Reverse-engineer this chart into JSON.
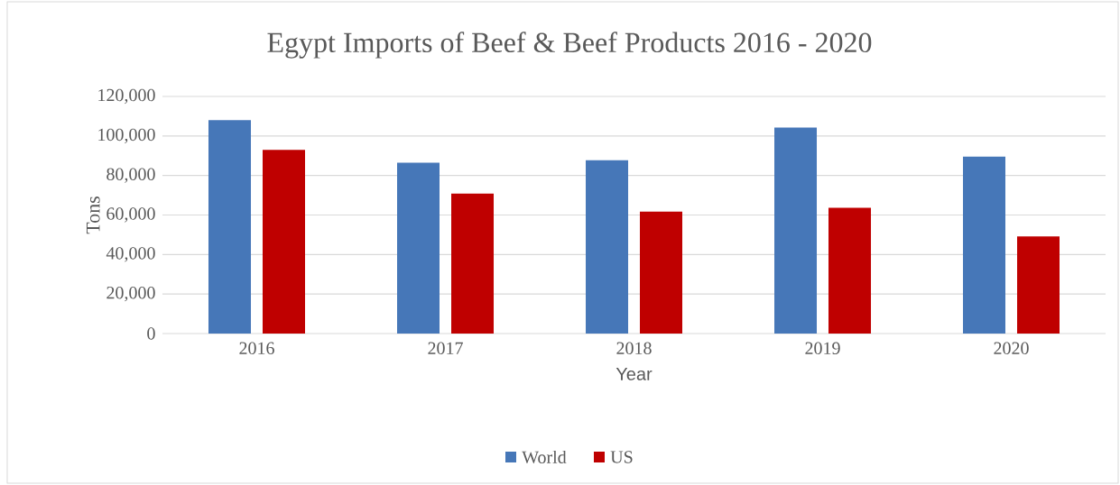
{
  "chart_data": {
    "type": "bar",
    "title": "Egypt Imports of Beef & Beef Products 2016 - 2020",
    "xlabel": "Year",
    "ylabel": "Tons",
    "categories": [
      "2016",
      "2017",
      "2018",
      "2019",
      "2020"
    ],
    "series": [
      {
        "name": "World",
        "color": "#4677b8",
        "values": [
          108000,
          86500,
          87700,
          104300,
          89500
        ]
      },
      {
        "name": "US",
        "color": "#bf0000",
        "values": [
          93000,
          70800,
          61700,
          63600,
          49200
        ]
      }
    ],
    "ylim": [
      0,
      120000
    ],
    "yticks": [
      {
        "value": 0,
        "label": "0"
      },
      {
        "value": 20000,
        "label": "20,000"
      },
      {
        "value": 40000,
        "label": "40,000"
      },
      {
        "value": 60000,
        "label": "60,000"
      },
      {
        "value": 80000,
        "label": "80,000"
      },
      {
        "value": 100000,
        "label": "100,000"
      },
      {
        "value": 120000,
        "label": "120,000"
      }
    ],
    "grid": "y",
    "legend": "bottom"
  }
}
